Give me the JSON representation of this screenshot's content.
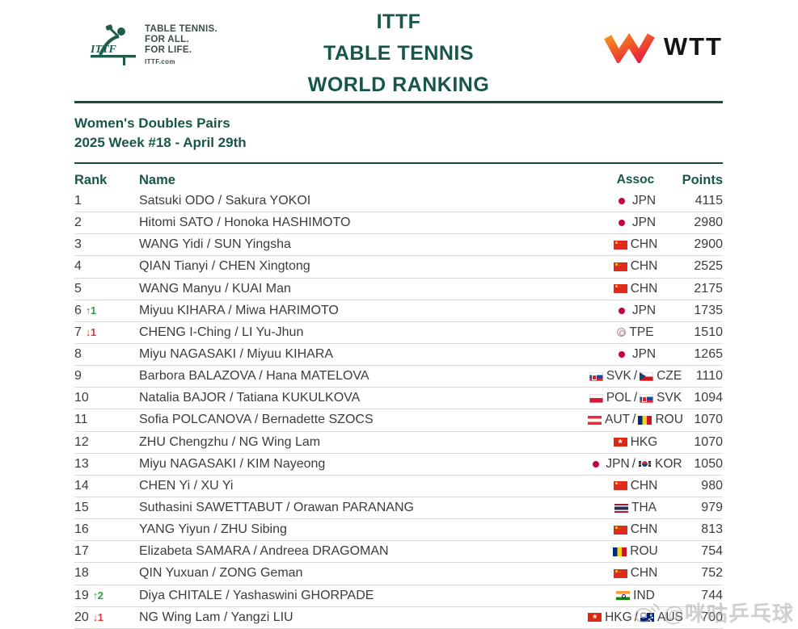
{
  "header": {
    "ittf_logo": {
      "tagline": [
        "TABLE TENNIS.",
        "FOR ALL.",
        "FOR LIFE."
      ],
      "site": "ITTF.com"
    },
    "title_lines": [
      "ITTF",
      "TABLE TENNIS",
      "WORLD RANKING"
    ],
    "wtt_text": "WTT"
  },
  "subtitle": {
    "category": "Women's Doubles Pairs",
    "edition": "2025 Week #18 - April 29th"
  },
  "table": {
    "headers": {
      "rank": "Rank",
      "name": "Name",
      "assoc": "Assoc",
      "points": "Points"
    },
    "rows": [
      {
        "rank": "1",
        "change": null,
        "name": "Satsuki ODO / Sakura YOKOI",
        "assoc": [
          {
            "code": "JPN",
            "flag": "jpn"
          }
        ],
        "points": "4115"
      },
      {
        "rank": "2",
        "change": null,
        "name": "Hitomi SATO / Honoka HASHIMOTO",
        "assoc": [
          {
            "code": "JPN",
            "flag": "jpn"
          }
        ],
        "points": "2980"
      },
      {
        "rank": "3",
        "change": null,
        "name": "WANG Yidi / SUN Yingsha",
        "assoc": [
          {
            "code": "CHN",
            "flag": "chn"
          }
        ],
        "points": "2900"
      },
      {
        "rank": "4",
        "change": null,
        "name": "QIAN Tianyi / CHEN Xingtong",
        "assoc": [
          {
            "code": "CHN",
            "flag": "chn"
          }
        ],
        "points": "2525"
      },
      {
        "rank": "5",
        "change": null,
        "name": "WANG Manyu / KUAI Man",
        "assoc": [
          {
            "code": "CHN",
            "flag": "chn"
          }
        ],
        "points": "2175"
      },
      {
        "rank": "6",
        "change": {
          "dir": "up",
          "amount": "1"
        },
        "name": "Miyuu KIHARA / Miwa HARIMOTO",
        "assoc": [
          {
            "code": "JPN",
            "flag": "jpn"
          }
        ],
        "points": "1735"
      },
      {
        "rank": "7",
        "change": {
          "dir": "down",
          "amount": "1"
        },
        "name": "CHENG I-Ching / LI Yu-Jhun",
        "assoc": [
          {
            "code": "TPE",
            "flag": "tpe"
          }
        ],
        "points": "1510"
      },
      {
        "rank": "8",
        "change": null,
        "name": "Miyu NAGASAKI / Miyuu KIHARA",
        "assoc": [
          {
            "code": "JPN",
            "flag": "jpn"
          }
        ],
        "points": "1265"
      },
      {
        "rank": "9",
        "change": null,
        "name": "Barbora BALAZOVA / Hana MATELOVA",
        "assoc": [
          {
            "code": "SVK",
            "flag": "svk"
          },
          {
            "code": "CZE",
            "flag": "cze"
          }
        ],
        "points": "1110"
      },
      {
        "rank": "10",
        "change": null,
        "name": "Natalia BAJOR / Tatiana KUKULKOVA",
        "assoc": [
          {
            "code": "POL",
            "flag": "pol"
          },
          {
            "code": "SVK",
            "flag": "svk"
          }
        ],
        "points": "1094"
      },
      {
        "rank": "11",
        "change": null,
        "name": "Sofia POLCANOVA / Bernadette SZOCS",
        "assoc": [
          {
            "code": "AUT",
            "flag": "aut"
          },
          {
            "code": "ROU",
            "flag": "rou"
          }
        ],
        "points": "1070"
      },
      {
        "rank": "12",
        "change": null,
        "name": "ZHU Chengzhu / NG Wing Lam",
        "assoc": [
          {
            "code": "HKG",
            "flag": "hkg"
          }
        ],
        "points": "1070"
      },
      {
        "rank": "13",
        "change": null,
        "name": "Miyu NAGASAKI / KIM Nayeong",
        "assoc": [
          {
            "code": "JPN",
            "flag": "jpn"
          },
          {
            "code": "KOR",
            "flag": "kor"
          }
        ],
        "points": "1050"
      },
      {
        "rank": "14",
        "change": null,
        "name": "CHEN Yi / XU Yi",
        "assoc": [
          {
            "code": "CHN",
            "flag": "chn"
          }
        ],
        "points": "980"
      },
      {
        "rank": "15",
        "change": null,
        "name": "Suthasini SAWETTABUT / Orawan PARANANG",
        "assoc": [
          {
            "code": "THA",
            "flag": "tha"
          }
        ],
        "points": "979"
      },
      {
        "rank": "16",
        "change": null,
        "name": "YANG Yiyun / ZHU Sibing",
        "assoc": [
          {
            "code": "CHN",
            "flag": "chn"
          }
        ],
        "points": "813"
      },
      {
        "rank": "17",
        "change": null,
        "name": "Elizabeta SAMARA / Andreea DRAGOMAN",
        "assoc": [
          {
            "code": "ROU",
            "flag": "rou"
          }
        ],
        "points": "754"
      },
      {
        "rank": "18",
        "change": null,
        "name": "QIN Yuxuan / ZONG Geman",
        "assoc": [
          {
            "code": "CHN",
            "flag": "chn"
          }
        ],
        "points": "752"
      },
      {
        "rank": "19",
        "change": {
          "dir": "up",
          "amount": "2"
        },
        "name": "Diya CHITALE / Yashaswini GHORPADE",
        "assoc": [
          {
            "code": "IND",
            "flag": "ind"
          }
        ],
        "points": "744"
      },
      {
        "rank": "20",
        "change": {
          "dir": "down",
          "amount": "1"
        },
        "name": "NG Wing Lam / Yangzi LIU",
        "assoc": [
          {
            "code": "HKG",
            "flag": "hkg"
          },
          {
            "code": "AUS",
            "flag": "aus"
          }
        ],
        "points": "700"
      }
    ]
  },
  "watermark": {
    "text": "@咪咕乒乓球"
  },
  "colors": {
    "accent": "#175649",
    "up_green": "#2f9e44",
    "down_red": "#e0392f",
    "wtt_orange": "#f7941d",
    "wtt_red": "#ec1c40"
  },
  "arrows": {
    "up": "↑",
    "down": "↓"
  }
}
